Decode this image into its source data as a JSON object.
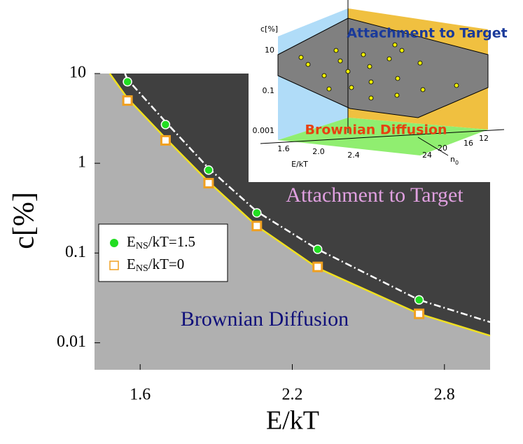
{
  "chart_data": {
    "type": "scatter",
    "xlabel": "E/kT",
    "ylabel": "c[%]",
    "xlim": [
      1.42,
      2.98
    ],
    "ylim": [
      0.005,
      10
    ],
    "log_y": true,
    "xticks": [
      1.6,
      2.2,
      2.8
    ],
    "yticks": [
      10,
      1,
      0.1,
      0.01
    ],
    "series": [
      {
        "name_parts": [
          "E",
          "NS",
          "/kT=1.5"
        ],
        "color": "#22dd22",
        "marker": "circle",
        "x": [
          1.55,
          1.7,
          1.87,
          2.06,
          2.3,
          2.7
        ],
        "values": [
          8.1,
          2.7,
          0.84,
          0.28,
          0.11,
          0.03
        ]
      },
      {
        "name_parts": [
          "E",
          "NS",
          "/kT=0"
        ],
        "color": "#f0a020",
        "marker": "square",
        "x": [
          1.55,
          1.7,
          1.87,
          2.06,
          2.3,
          2.7
        ],
        "values": [
          5,
          1.8,
          0.6,
          0.2,
          0.07,
          0.021
        ]
      }
    ],
    "lines": [
      {
        "color": "#f0e020",
        "style": "solid",
        "x": [
          1.48,
          1.55,
          1.7,
          1.87,
          2.06,
          2.3,
          2.7,
          2.98
        ],
        "values": [
          10,
          5.3,
          1.9,
          0.62,
          0.2,
          0.068,
          0.021,
          0.012
        ]
      },
      {
        "color": "#ffffff",
        "style": "dashdot",
        "x": [
          1.54,
          1.55,
          1.7,
          1.87,
          2.06,
          2.3,
          2.7,
          2.98
        ],
        "values": [
          10,
          8.6,
          2.9,
          0.88,
          0.29,
          0.11,
          0.03,
          0.017
        ]
      }
    ],
    "annotations": [
      "Attachment to Target",
      "Brownian Diffusion"
    ]
  },
  "inset": {
    "zlabel": "c[%]",
    "zticks": [
      "10",
      "0.1",
      "0.001"
    ],
    "xlabel": "E/kT",
    "xticks": [
      "1.6",
      "2.0",
      "2.4"
    ],
    "ylabel_parts": [
      "n",
      "0"
    ],
    "yticks": [
      "12",
      "16",
      "20",
      "24"
    ],
    "region_top": "Attachment to Target",
    "region_bottom": "Brownian Diffusion"
  }
}
